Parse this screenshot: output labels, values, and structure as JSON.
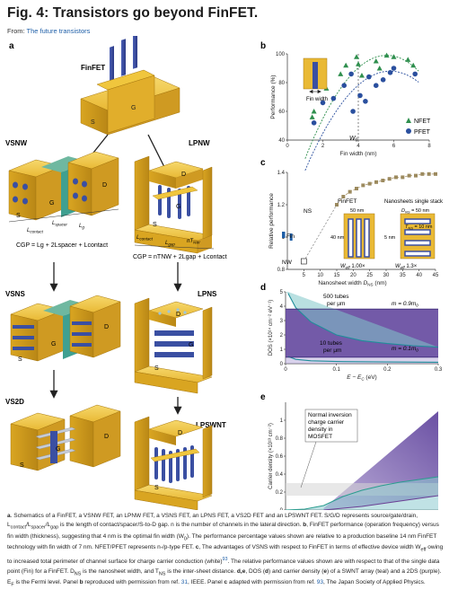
{
  "header": {
    "title": "Fig. 4: Transistors go beyond FinFET.",
    "from_prefix": "From: ",
    "from_link": "The future transistors"
  },
  "panel_letters": {
    "a": "a",
    "b": "b",
    "c": "c",
    "d": "d",
    "e": "e"
  },
  "panel_a": {
    "finfet": "FinFET",
    "vsnw": "VSNW",
    "lpnw": "LPNW",
    "vsns": "VSNS",
    "lpns": "LPNS",
    "vs2d": "VS2D",
    "lpswnt": "LPSWNT",
    "S": "S",
    "D": "D",
    "G": "G",
    "lcontact": "L",
    "lcontact_sub": "contact",
    "lspacer": "L",
    "lspacer_sub": "spacer",
    "lg": "L",
    "lg_sub": "g",
    "lgap": "L",
    "lgap_sub": "gap",
    "ntnw": "nT",
    "ntnw_sub": "NW",
    "cgp_left": "CGP = L₉ + 2Lₛₚₐᶜₑᵣ + Lᶜₒₙₜₐᶜₜ",
    "cgp_left_text": "CGP = Lg + 2Lspacer + Lcontact",
    "cgp_right_text": "CGP = nTNW + 2Lgap + Lcontact"
  },
  "panel_b": {
    "ylabel": "Performance (%)",
    "xlabel": "Fin width (nm)",
    "inset_label": "Fin width",
    "wopt_label": "W",
    "wopt_sub": "0",
    "legend": [
      "NFET",
      "PFET"
    ]
  },
  "panel_c": {
    "ylabel": "Relative performance",
    "xlabel": "Nanosheet width",
    "xlabel_var": "D",
    "xlabel_sub": "NS",
    "xlabel_unit": "(nm)",
    "label_ns": "NS",
    "label_nw": "NW",
    "label_fin": "Fin",
    "finfet_title": "FinFET",
    "finfet_50nm": "50 nm",
    "finfet_40nm": "40 nm",
    "finfet_weff": "W",
    "finfet_weff_sub": "eff",
    "finfet_weff_val": "1.00×",
    "ns_title": "Nanosheets single stack",
    "ns_dns": "D",
    "ns_dns_sub": "NS",
    "ns_dns_val": "= 50 nm",
    "ns_tns": "T",
    "ns_tns_sub": "NS",
    "ns_tns_val": "= 10 nm",
    "ns_5nm": "5 nm",
    "ns_weff": "W",
    "ns_weff_sub": "eff",
    "ns_weff_val": "1.3×"
  },
  "panel_d": {
    "ylabel": "DOS (×10¹⁴ cm⁻² eV⁻¹)",
    "xlabel": "E − E",
    "xlabel_sub": "C",
    "xlabel_unit": "(eV)",
    "label_500a": "500 tubes",
    "label_500b": "per μm",
    "label_10a": "10 tubes",
    "label_10b": "per μm",
    "m_high": "m = 0.9m",
    "m_low": "m = 0.1m",
    "m_sub": "0"
  },
  "panel_e": {
    "ylabel": "Carrier density (×10¹³ cm⁻²)",
    "xlabel": "E",
    "xlabel_mid": " − E",
    "xlabel_sub1": "F",
    "xlabel_sub2": "C",
    "xlabel_unit": "(eV)",
    "box_lines": [
      "Normal inversion",
      "charge carrier",
      "density in",
      "MOSFET"
    ]
  },
  "chart_data": [
    {
      "panel": "b",
      "type": "scatter",
      "xlabel": "Fin width (nm)",
      "ylabel": "Performance (%)",
      "xlim": [
        0,
        8
      ],
      "ylim": [
        40,
        100
      ],
      "xticks": [
        0,
        2,
        4,
        6,
        8
      ],
      "yticks": [
        40,
        60,
        80,
        100
      ],
      "series": [
        {
          "name": "NFET",
          "marker": "triangle",
          "color": "#2f8f4e",
          "points": [
            [
              1.4,
              56
            ],
            [
              1.5,
              60
            ],
            [
              2.2,
              76
            ],
            [
              3.0,
              86
            ],
            [
              3.3,
              92
            ],
            [
              3.9,
              98
            ],
            [
              4.0,
              93
            ],
            [
              4.2,
              85
            ],
            [
              5.0,
              95
            ],
            [
              5.2,
              90
            ],
            [
              5.6,
              99
            ],
            [
              6.0,
              98
            ],
            [
              6.8,
              96
            ],
            [
              7.1,
              92
            ]
          ]
        },
        {
          "name": "PFET",
          "marker": "circle",
          "color": "#2a4f9e",
          "points": [
            [
              1.5,
              52
            ],
            [
              2.0,
              66
            ],
            [
              2.6,
              69
            ],
            [
              3.2,
              78
            ],
            [
              3.6,
              86
            ],
            [
              3.7,
              60
            ],
            [
              4.1,
              71
            ],
            [
              4.4,
              67
            ],
            [
              4.6,
              84
            ],
            [
              5.0,
              78
            ],
            [
              5.4,
              82
            ],
            [
              5.8,
              87
            ],
            [
              6.0,
              90
            ],
            [
              7.2,
              86
            ]
          ]
        }
      ],
      "vline_x": 4
    },
    {
      "panel": "c",
      "type": "line",
      "xlabel": "Nanosheet width DNS (nm)",
      "ylabel": "Relative performance",
      "xlim": [
        0,
        45
      ],
      "ylim": [
        0.8,
        1.4
      ],
      "xticks": [
        5,
        10,
        15,
        20,
        25,
        30,
        35,
        40,
        45
      ],
      "yticks": [
        0.8,
        1.0,
        1.2,
        1.4
      ],
      "series": [
        {
          "name": "NS",
          "color": "#a8956a",
          "x": [
            15,
            17,
            19,
            21,
            23,
            25,
            27,
            29,
            31,
            33,
            35,
            37,
            39,
            41,
            43,
            45
          ],
          "y": [
            1.2,
            1.25,
            1.28,
            1.3,
            1.32,
            1.33,
            1.34,
            1.35,
            1.36,
            1.37,
            1.37,
            1.38,
            1.38,
            1.39,
            1.39,
            1.39
          ]
        }
      ],
      "fin_point": [
        1,
        1.0
      ],
      "nw_point": [
        5,
        0.85
      ]
    },
    {
      "panel": "d",
      "type": "line",
      "xlabel": "E − EC (eV)",
      "ylabel": "DOS (×10¹⁴ cm⁻² eV⁻¹)",
      "xlim": [
        0,
        0.3
      ],
      "ylim": [
        0,
        5
      ],
      "xticks": [
        0,
        0.1,
        0.2,
        0.3
      ],
      "yticks": [
        0,
        1,
        2,
        3,
        4,
        5
      ],
      "series": [
        {
          "name": "500 tubes per μm",
          "color": "#1f8e9a",
          "x": [
            0.005,
            0.02,
            0.05,
            0.1,
            0.15,
            0.2,
            0.25,
            0.3
          ],
          "y": [
            4.9,
            3.9,
            2.9,
            2.0,
            1.6,
            1.4,
            1.25,
            1.15
          ]
        },
        {
          "name": "10 tubes per μm",
          "color": "#1f8e9a",
          "x": [
            0.005,
            0.02,
            0.05,
            0.1,
            0.2,
            0.3
          ],
          "y": [
            0.5,
            0.3,
            0.2,
            0.15,
            0.12,
            0.1
          ]
        }
      ],
      "bands": [
        {
          "label": "m = 0.9m0",
          "value": 3.8,
          "color": "#5a3d99"
        },
        {
          "label": "m = 0.1m0",
          "value": 0.45,
          "color": "#5a3d99"
        }
      ]
    },
    {
      "panel": "e",
      "type": "area",
      "xlabel": "EF − EC (eV)",
      "ylabel": "Carrier density (×10¹³ cm⁻²)",
      "xlim": [
        -0.1,
        0.3
      ],
      "ylim": [
        0,
        1.2
      ],
      "xticks": [
        -0.1,
        0,
        0.1,
        0.2,
        0.3
      ],
      "yticks": [
        0,
        0.2,
        0.4,
        0.6,
        0.8,
        1.0
      ],
      "series": [
        {
          "name": "2DS upper",
          "color": "#6b3f94",
          "x": [
            0,
            0.05,
            0.1,
            0.15,
            0.2,
            0.25,
            0.3
          ],
          "y": [
            0.02,
            0.2,
            0.38,
            0.56,
            0.74,
            0.92,
            1.1
          ]
        },
        {
          "name": "2DS lower",
          "color": "#6b3f94",
          "x": [
            0,
            0.05,
            0.1,
            0.15,
            0.2,
            0.25,
            0.3
          ],
          "y": [
            0.0,
            0.02,
            0.04,
            0.07,
            0.1,
            0.13,
            0.16
          ]
        },
        {
          "name": "SWNT array",
          "color": "#2a9d8f",
          "x": [
            -0.1,
            -0.05,
            0,
            0.05,
            0.1,
            0.15,
            0.2,
            0.25,
            0.3
          ],
          "y": [
            0.0,
            0.01,
            0.05,
            0.15,
            0.22,
            0.27,
            0.31,
            0.34,
            0.37
          ]
        }
      ],
      "mosfet_band": [
        0.16,
        0.3
      ]
    }
  ],
  "caption": {
    "a_letter": "a",
    "a_text": ". Schematics of a FinFET, a VSNW FET, an LPNW FET, a VSNS FET, an LPNS FET, a VS2D FET and an LPSWNT FET. S/G/D represents source/gate/drain, L",
    "a_text2": "contact",
    "a_text3": "/L",
    "a_text4": "spacer",
    "a_text5": "/L",
    "a_text6": "gap",
    "a_text7": " is the length of contact/spacer/S-to-D gap. n is the number of channels in the lateral direction. ",
    "b_letter": "b",
    "b_text": ", FinFET performance (operation frequency) versus fin width (thickness), suggesting that 4 nm is the optimal fin width (W",
    "b_text2": "0",
    "b_text3": "). The performance percentage values shown are relative to a production baseline 14 nm FinFET technology with fin width of 7 nm. NFET/PFET represents n-/p-type FET. ",
    "c_letter": "c",
    "c_text": ", The advantages of VSNS with respect to FinFET in terms of effective device width W",
    "c_text2": "eff",
    "c_text3": " owing to increased total perimeter of channel surface for charge carrier conduction (white)",
    "c_ref": "93",
    "c_text4": ". The relative performance values shown are with respect to that of the single data point (Fin) for a FinFET. D",
    "c_text5": "NS",
    "c_text6": " is the nanosheet width, and T",
    "c_text7": "NS",
    "c_text8": " is the inter-sheet distance. ",
    "de_letter": "d,e",
    "de_text": ", DOS (",
    "d_letter": "d",
    "de_text2": ") and carrier density (",
    "e_letter": "e",
    "de_text3": ") of a SWNT array (teal) and a 2DS (purple). E",
    "de_text4": "F",
    "de_text5": " is the Fermi level. Panel ",
    "b_ref_letter": "b",
    "de_text6": " reproduced with permission from ref. ",
    "ref1": "31",
    "de_text7": ",",
    "de_text8": "IEEE. Panel ",
    "c_ref_letter": "c",
    "de_text9": " adapted with permission from ref. ",
    "ref2": "93",
    "de_text10": ", The Japan Society of Applied Physics."
  },
  "colors": {
    "gold": "#e8b730",
    "gold_dark": "#b8860b",
    "blue_channel": "#3a4fa2",
    "teal": "#1f8e9a",
    "purple": "#5a3d99",
    "nfet": "#2f8f4e",
    "pfet": "#2a4f9e"
  }
}
